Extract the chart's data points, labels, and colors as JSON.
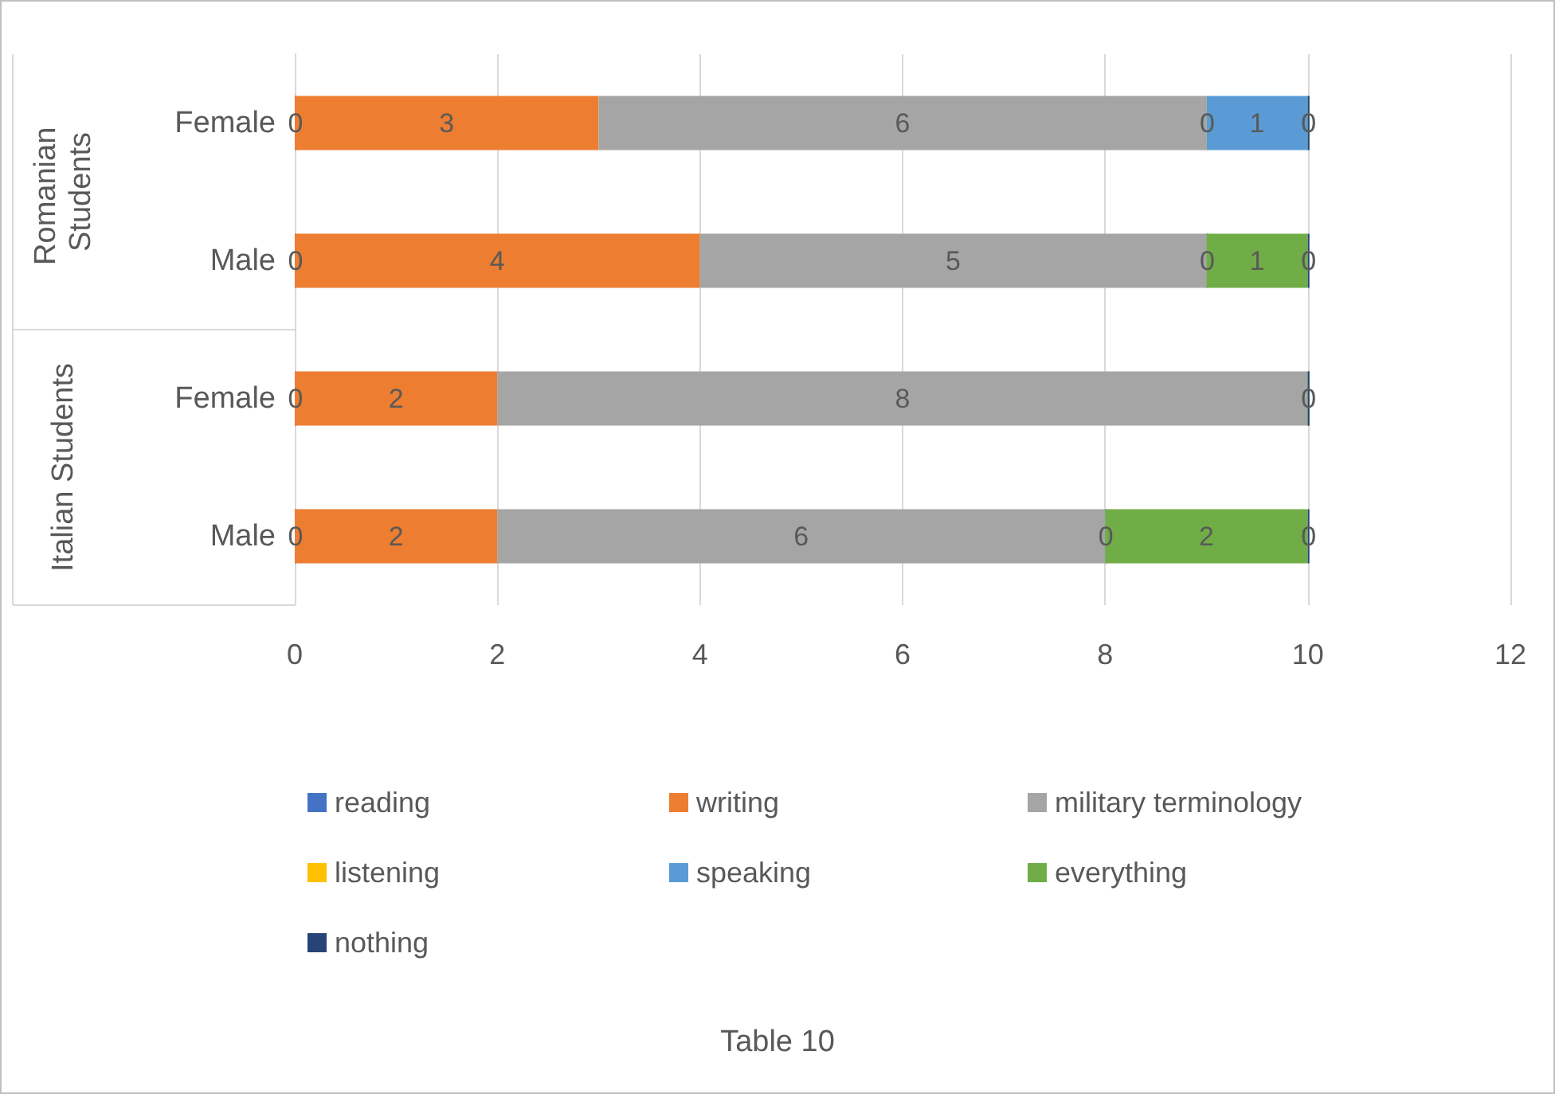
{
  "chart_data": {
    "type": "bar",
    "orientation": "horizontal",
    "stacked": true,
    "title": "Table 10",
    "categories": [
      "Female",
      "Male",
      "Female",
      "Male"
    ],
    "series": [
      {
        "name": "reading",
        "color": "#4472c4",
        "values": [
          0,
          0,
          0,
          0
        ],
        "value_labels": [
          "0",
          "0",
          "0",
          "0"
        ]
      },
      {
        "name": "writing",
        "color": "#ed7d31",
        "values": [
          3,
          4,
          2,
          2
        ],
        "value_labels": [
          "3",
          "4",
          "2",
          "2"
        ]
      },
      {
        "name": "military terminology",
        "color": "#a5a5a5",
        "values": [
          6,
          5,
          8,
          6
        ],
        "value_labels": [
          "6",
          "5",
          "8",
          "6"
        ]
      },
      {
        "name": "listening",
        "color": "#ffc000",
        "values": [
          0,
          0,
          0,
          0
        ],
        "value_labels": [
          "0",
          "0",
          null,
          "0"
        ]
      },
      {
        "name": "speaking",
        "color": "#5b9bd5",
        "values": [
          1,
          0,
          0,
          0
        ],
        "value_labels": [
          "1",
          null,
          null,
          null
        ]
      },
      {
        "name": "everything",
        "color": "#70ad47",
        "values": [
          0,
          1,
          0,
          2
        ],
        "value_labels": [
          null,
          "1",
          null,
          "2"
        ]
      },
      {
        "name": "nothing",
        "color": "#264478",
        "values": [
          0,
          0,
          0,
          0
        ],
        "value_labels": [
          "0",
          "0",
          "0",
          "0"
        ]
      }
    ],
    "annotations": [
      "Romanian Students",
      "Italian Students"
    ],
    "xlim": [
      0,
      12
    ],
    "xticks": [
      0,
      2,
      4,
      6,
      8,
      10,
      12
    ],
    "grid": "x",
    "legend": "bottom"
  }
}
